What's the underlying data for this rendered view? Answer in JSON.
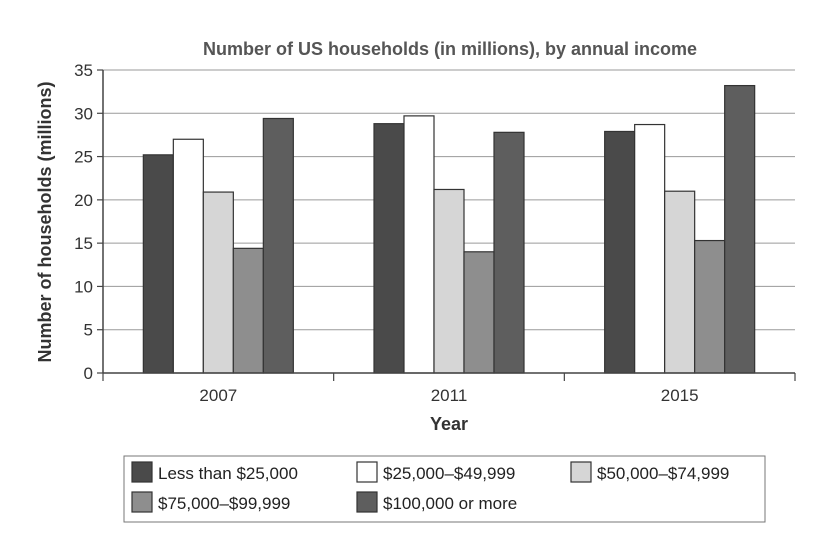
{
  "chart_data": {
    "type": "bar",
    "title": "Number of US households (in millions), by annual income",
    "xlabel": "Year",
    "ylabel": "Number of households (millions)",
    "ylim": [
      0,
      35
    ],
    "yticks": [
      0,
      5,
      10,
      15,
      20,
      25,
      30,
      35
    ],
    "grid": true,
    "legend_position": "bottom",
    "categories": [
      "2007",
      "2011",
      "2015"
    ],
    "series": [
      {
        "name": "Less than $25,000",
        "color": "#4a4a4a",
        "values": [
          25.2,
          28.8,
          27.9
        ]
      },
      {
        "name": "$25,000–$49,999",
        "color": "#ffffff",
        "values": [
          27.0,
          29.7,
          28.7
        ]
      },
      {
        "name": "$50,000–$74,999",
        "color": "#d6d6d6",
        "values": [
          20.9,
          21.2,
          21.0
        ]
      },
      {
        "name": "$75,000–$99,999",
        "color": "#8e8e8e",
        "values": [
          14.4,
          14.0,
          15.3
        ]
      },
      {
        "name": "$100,000 or more",
        "color": "#5e5e5e",
        "values": [
          29.4,
          27.8,
          33.2
        ]
      }
    ]
  }
}
